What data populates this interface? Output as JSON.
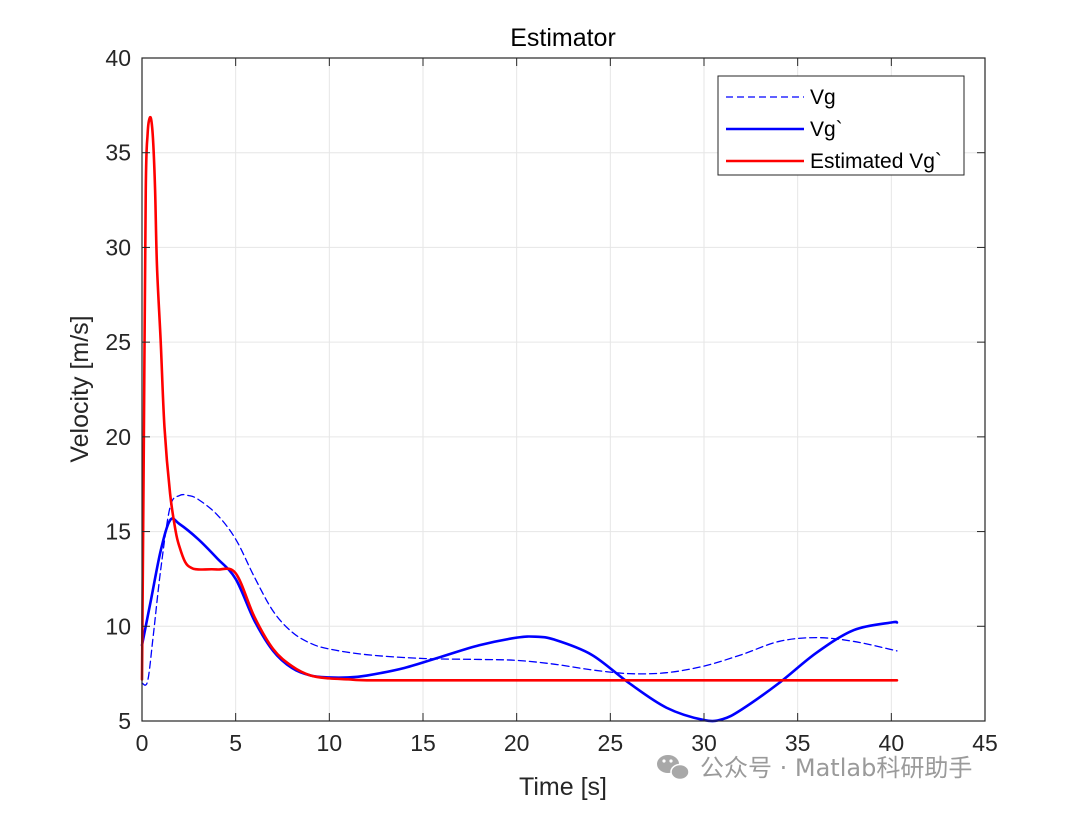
{
  "chart_data": {
    "type": "line",
    "title": "Estimator",
    "xlabel": "Time [s]",
    "ylabel": "Velocity [m/s]",
    "xlim": [
      0,
      45
    ],
    "ylim": [
      5,
      40
    ],
    "xticks": [
      0,
      5,
      10,
      15,
      20,
      25,
      30,
      35,
      40,
      45
    ],
    "yticks": [
      5,
      10,
      15,
      20,
      25,
      30,
      35,
      40
    ],
    "grid": true,
    "legend_location": "top-right",
    "series": [
      {
        "name": "Vg",
        "color": "#0000ff",
        "style": "dashed",
        "x": [
          0,
          0.3,
          0.6,
          1.0,
          1.5,
          2.0,
          2.5,
          3.0,
          4.0,
          5.0,
          6.0,
          7.0,
          8.0,
          9.0,
          10.0,
          12.0,
          15.0,
          18.0,
          20.0,
          22.0,
          24.0,
          26.0,
          28.0,
          30.0,
          32.0,
          34.0,
          36.0,
          38.0,
          40.3
        ],
        "y": [
          7.0,
          7.1,
          9.5,
          13.0,
          16.3,
          16.9,
          16.9,
          16.7,
          15.9,
          14.6,
          12.6,
          10.8,
          9.7,
          9.1,
          8.8,
          8.5,
          8.3,
          8.25,
          8.2,
          8.0,
          7.7,
          7.5,
          7.55,
          7.9,
          8.5,
          9.2,
          9.4,
          9.2,
          8.7
        ]
      },
      {
        "name": "Vg`",
        "color": "#0000ff",
        "style": "solid",
        "x": [
          0,
          0.5,
          1.0,
          1.5,
          2.0,
          3.0,
          4.0,
          5.0,
          6.0,
          7.0,
          8.0,
          9.0,
          10.0,
          11.0,
          12.0,
          14.0,
          16.0,
          18.0,
          20.0,
          21.0,
          22.0,
          24.0,
          26.0,
          28.0,
          30.0,
          31.0,
          32.0,
          34.0,
          36.0,
          38.0,
          40.0,
          40.3
        ],
        "y": [
          9.0,
          11.5,
          14.0,
          15.6,
          15.4,
          14.6,
          13.6,
          12.5,
          10.3,
          8.7,
          7.8,
          7.4,
          7.3,
          7.3,
          7.4,
          7.8,
          8.4,
          9.0,
          9.4,
          9.45,
          9.3,
          8.5,
          7.0,
          5.7,
          5.05,
          5.1,
          5.6,
          7.0,
          8.6,
          9.8,
          10.2,
          10.2
        ]
      },
      {
        "name": "Estimated Vg`",
        "color": "#ff0000",
        "style": "solid",
        "x": [
          0,
          0.1,
          0.2,
          0.3,
          0.4,
          0.5,
          0.6,
          0.7,
          0.8,
          1.0,
          1.2,
          1.5,
          1.8,
          2.0,
          2.3,
          2.6,
          3.0,
          4.0,
          5.0,
          6.0,
          7.0,
          8.0,
          9.0,
          10.0,
          11.0,
          12.0,
          15.0,
          20.0,
          25.0,
          30.0,
          35.0,
          40.3
        ],
        "y": [
          7.2,
          20.0,
          33.0,
          36.0,
          36.8,
          36.7,
          35.5,
          33.0,
          29.0,
          25.0,
          20.5,
          17.0,
          15.0,
          14.2,
          13.4,
          13.1,
          13.0,
          13.0,
          12.8,
          10.5,
          8.8,
          7.9,
          7.4,
          7.25,
          7.2,
          7.15,
          7.15,
          7.15,
          7.15,
          7.15,
          7.15,
          7.15
        ]
      }
    ]
  },
  "watermark": {
    "text": "公众号 · Matlab科研助手",
    "icon": "wechat-icon"
  }
}
